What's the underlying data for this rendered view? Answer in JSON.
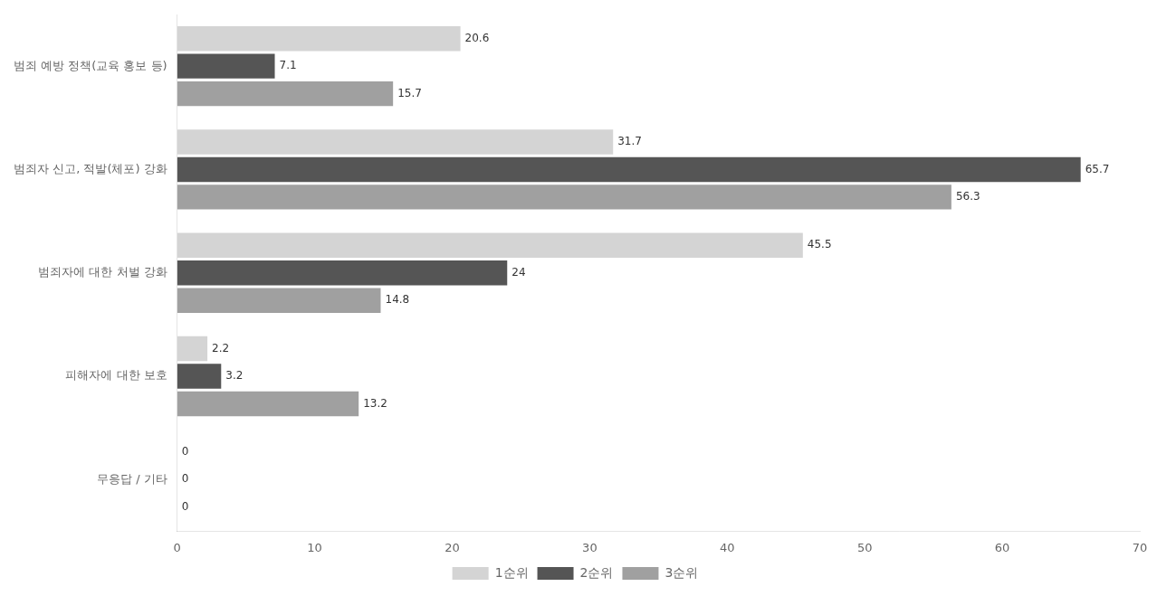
{
  "chart_data": {
    "type": "bar",
    "orientation": "horizontal",
    "categories": [
      "범죄 예방 정책(교육 홍보 등)",
      "범죄자 신고, 적발(체포) 강화",
      "범죄자에 대한 처벌 강화",
      "피해자에 대한 보호",
      "무응답 / 기타"
    ],
    "series": [
      {
        "name": "1순위",
        "color": "#d4d4d4",
        "values": [
          20.6,
          31.7,
          45.5,
          2.2,
          0
        ]
      },
      {
        "name": "2순위",
        "color": "#555555",
        "values": [
          7.1,
          65.7,
          24.0,
          3.2,
          0
        ]
      },
      {
        "name": "3순위",
        "color": "#a0a0a0",
        "values": [
          15.7,
          56.3,
          14.8,
          13.2,
          0
        ]
      }
    ],
    "xlim": [
      0,
      70
    ],
    "xticks": [
      0,
      10,
      20,
      30,
      40,
      50,
      60,
      70
    ],
    "grid": false,
    "legend": "bottom",
    "data_labels": true
  }
}
